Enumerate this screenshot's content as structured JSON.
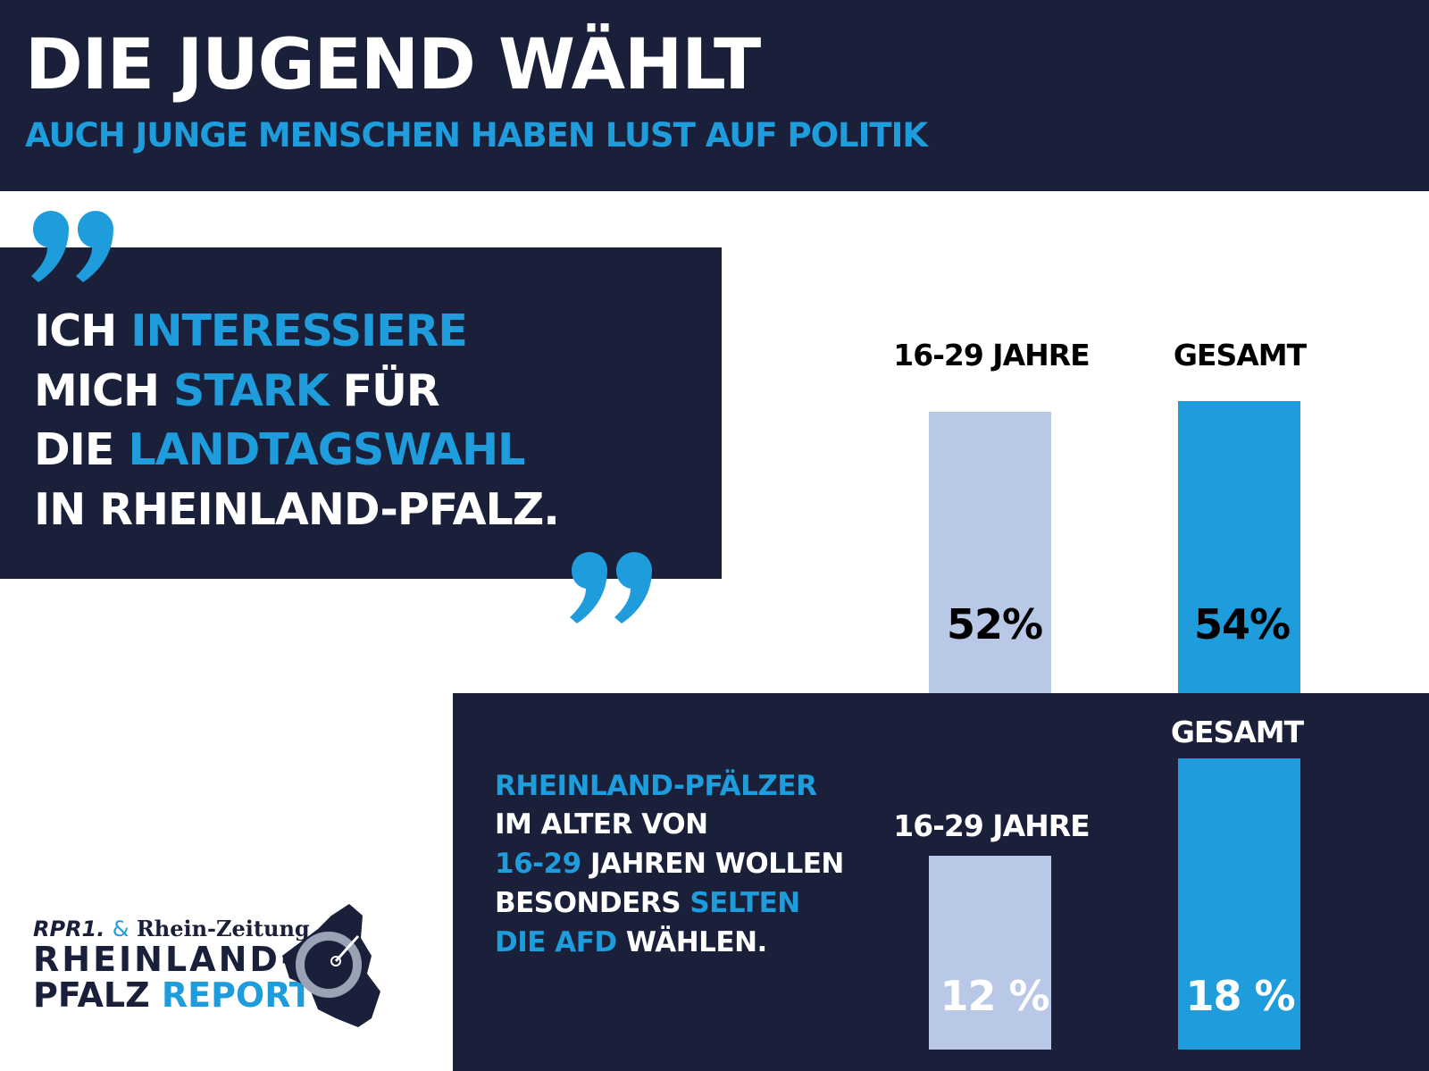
{
  "header": {
    "title": "DIE JUGEND WÄHLT",
    "subtitle": "AUCH JUNGE MENSCHEN HABEN LUST AUF POLITIK"
  },
  "quote": {
    "mark": "”",
    "lines": [
      [
        "ICH ",
        "INTERESSIERE"
      ],
      [
        "MICH ",
        "STARK",
        " FÜR"
      ],
      [
        "DIE ",
        "LANDTAGSWAHL"
      ],
      [
        "IN RHEINLAND-PFALZ."
      ]
    ]
  },
  "statement": {
    "lines": [
      [
        "RHEINLAND-PFÄLZER"
      ],
      [
        "IM ALTER VON"
      ],
      [
        "16-29",
        " JAHREN WOLLEN"
      ],
      [
        "BESONDERS ",
        "SELTEN"
      ],
      [
        "DIE AFD",
        " WÄHLEN."
      ]
    ]
  },
  "colors": {
    "navy": "#1a2039",
    "blue": "#1e9cdc",
    "light": "#b8c8e6"
  },
  "chart_data": [
    {
      "type": "bar",
      "categories": [
        "16-29 JAHRE",
        "GESAMT"
      ],
      "values": [
        52,
        54
      ],
      "value_labels": [
        "52%",
        "54%"
      ],
      "colors": [
        "#b8c8e6",
        "#1e9cdc"
      ],
      "unit": "%"
    },
    {
      "type": "bar",
      "categories": [
        "16-29 JAHRE",
        "GESAMT"
      ],
      "values": [
        12,
        18
      ],
      "value_labels": [
        "12 %",
        "18 %"
      ],
      "colors": [
        "#b8c8e6",
        "#1e9cdc"
      ],
      "unit": "%"
    }
  ],
  "logo": {
    "brand1": "RPR1.",
    "amp": "&",
    "brand2": "Rhein-Zeitung",
    "line1": "RHEINLAND-",
    "line2a": "PFALZ ",
    "line2b": "REPORT"
  }
}
